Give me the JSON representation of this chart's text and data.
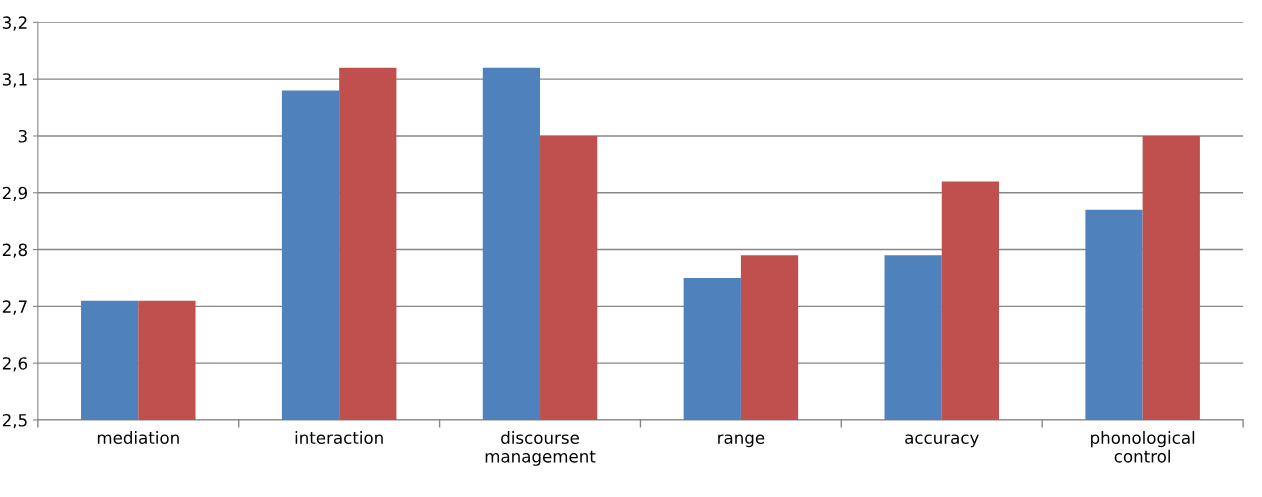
{
  "chart_data": {
    "type": "bar",
    "categories": [
      "mediation",
      "interaction",
      "discourse management",
      "range",
      "accuracy",
      "phonological control"
    ],
    "series": [
      {
        "color": "#4f81bd",
        "values": [
          2.71,
          3.08,
          3.12,
          2.75,
          2.79,
          2.87
        ]
      },
      {
        "color": "#c0504d",
        "values": [
          2.71,
          3.12,
          3.0,
          2.79,
          2.92,
          3.0
        ]
      }
    ],
    "ylim": [
      2.5,
      3.2
    ],
    "yticks": [
      {
        "value": 2.5,
        "label": "2,5"
      },
      {
        "value": 2.6,
        "label": "2,6"
      },
      {
        "value": 2.7,
        "label": "2,7"
      },
      {
        "value": 2.8,
        "label": "2,8"
      },
      {
        "value": 2.9,
        "label": "2,9"
      },
      {
        "value": 3,
        "label": "3"
      },
      {
        "value": 3.1,
        "label": "3,1"
      },
      {
        "value": 3.2,
        "label": "3,2"
      }
    ],
    "grid": "y",
    "legend": false
  }
}
